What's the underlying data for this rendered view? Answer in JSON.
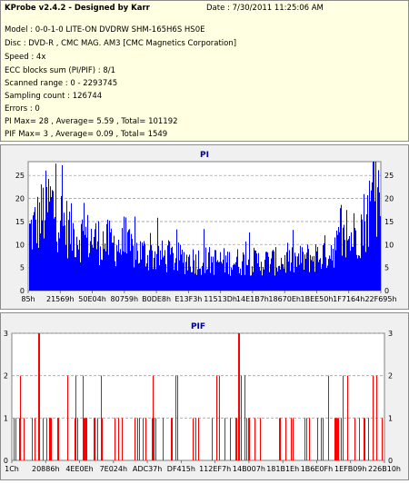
{
  "header": {
    "title": "KProbe v2.4.2 - Designed by Karr",
    "date": "Date : 7/30/2011 11:25:06 AM",
    "lines": [
      "Model : 0-0-1-0 LITE-ON DVDRW SHM-165H6S HS0E",
      "Disc : DVD-R , CMC MAG. AM3 [CMC Magnetics Corporation]",
      "Speed : 4x",
      "ECC blocks sum (PI/PIF) : 8/1",
      "Scanned range : 0 - 2293745",
      "Sampling count : 126744",
      "Errors : 0",
      "PI Max= 28 , Average= 5.59 , Total= 101192",
      "PIF Max= 3 , Average= 0.09 , Total= 1549"
    ]
  },
  "colors": {
    "pi": "#0000ff",
    "pif": "#ff0000"
  },
  "chart_data": [
    {
      "type": "bar",
      "title": "PI",
      "ylim": [
        0,
        28
      ],
      "yticks": [
        "0",
        "5",
        "10",
        "15",
        "20",
        "25"
      ],
      "xticks": [
        "85h",
        "21569h",
        "50E04h",
        "80759h",
        "B0DE8h",
        "E13F3h",
        "11513Dh",
        "14E1B7h",
        "18670Eh",
        "1BEE50h",
        "1F7164h",
        "22F695h"
      ],
      "grid": true,
      "max": 28,
      "average": 5.59,
      "profile": [
        [
          0.0,
          14
        ],
        [
          0.02,
          16
        ],
        [
          0.04,
          19
        ],
        [
          0.06,
          21
        ],
        [
          0.09,
          17
        ],
        [
          0.12,
          14
        ],
        [
          0.16,
          13
        ],
        [
          0.2,
          12
        ],
        [
          0.25,
          11
        ],
        [
          0.3,
          9.5
        ],
        [
          0.35,
          8.5
        ],
        [
          0.45,
          7.5
        ],
        [
          0.55,
          7
        ],
        [
          0.65,
          7
        ],
        [
          0.75,
          7
        ],
        [
          0.83,
          8.5
        ],
        [
          0.88,
          11
        ],
        [
          0.92,
          13
        ],
        [
          0.95,
          16
        ],
        [
          0.97,
          20
        ],
        [
          0.99,
          23
        ],
        [
          1.0,
          24
        ]
      ]
    },
    {
      "type": "bar",
      "title": "PIF",
      "ylim": [
        0,
        3
      ],
      "yticks": [
        "0",
        "1",
        "2",
        "3"
      ],
      "xticks": [
        "1Ch",
        "20886h",
        "4EE0Eh",
        "7E024h",
        "ADC37h",
        "DF415h",
        "112EF7h",
        "14B007h",
        "181B1Eh",
        "1B6E0Fh",
        "1EFB09h",
        "226B10h"
      ],
      "grid": true,
      "max": 3,
      "average": 0.09,
      "peaks": [
        [
          0.07,
          3
        ],
        [
          0.61,
          3
        ]
      ]
    }
  ]
}
